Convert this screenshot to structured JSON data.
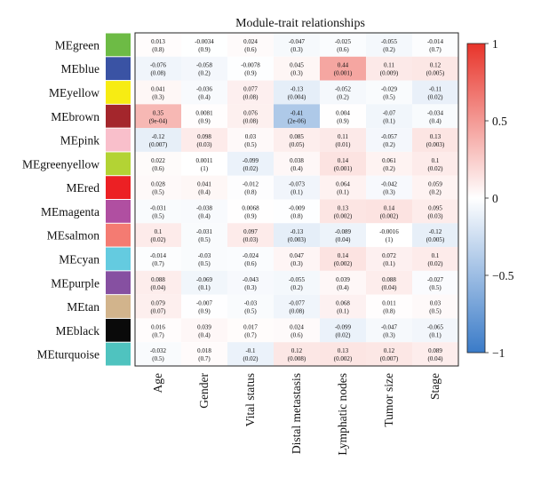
{
  "chart_data": {
    "type": "heatmap",
    "title": "Module-trait relationships",
    "rows": [
      {
        "label": "MEgreen",
        "color": "#6dbb45"
      },
      {
        "label": "MEblue",
        "color": "#3a53a4"
      },
      {
        "label": "MEyellow",
        "color": "#f7ec13"
      },
      {
        "label": "MEbrown",
        "color": "#a4262c"
      },
      {
        "label": "MEpink",
        "color": "#f9bfcb"
      },
      {
        "label": "MEgreenyellow",
        "color": "#b3d334"
      },
      {
        "label": "MEred",
        "color": "#ec2024"
      },
      {
        "label": "MEmagenta",
        "color": "#b04fa1"
      },
      {
        "label": "MEsalmon",
        "color": "#f47b72"
      },
      {
        "label": "MEcyan",
        "color": "#64cbe0"
      },
      {
        "label": "MEpurple",
        "color": "#8650a1"
      },
      {
        "label": "MEtan",
        "color": "#d2b48c"
      },
      {
        "label": "MEblack",
        "color": "#0a0a0a"
      },
      {
        "label": "MEturquoise",
        "color": "#4fc3bf"
      }
    ],
    "columns": [
      "Age",
      "Gender",
      "Vital status",
      "Distal metastasis",
      "Lymphatic nodes",
      "Tumor size",
      "Stage"
    ],
    "values": [
      [
        0.013,
        -0.0034,
        0.024,
        -0.047,
        -0.025,
        -0.055,
        -0.014
      ],
      [
        -0.076,
        -0.058,
        -0.0078,
        0.045,
        0.44,
        0.11,
        0.12
      ],
      [
        0.041,
        -0.036,
        0.077,
        -0.13,
        -0.052,
        -0.029,
        -0.11
      ],
      [
        0.35,
        0.0081,
        0.076,
        -0.41,
        0.004,
        -0.07,
        -0.034
      ],
      [
        -0.12,
        0.098,
        0.03,
        0.085,
        0.11,
        -0.057,
        0.13
      ],
      [
        0.022,
        0.0011,
        -0.099,
        0.038,
        0.14,
        0.061,
        0.1
      ],
      [
        0.028,
        0.041,
        -0.012,
        -0.073,
        0.064,
        -0.042,
        0.059
      ],
      [
        -0.031,
        -0.038,
        0.0068,
        -0.009,
        0.13,
        0.14,
        0.095
      ],
      [
        0.1,
        -0.031,
        0.097,
        -0.13,
        -0.089,
        -0.0016,
        -0.12
      ],
      [
        -0.014,
        -0.03,
        -0.024,
        0.047,
        0.14,
        0.072,
        0.1
      ],
      [
        0.088,
        -0.069,
        -0.043,
        -0.055,
        0.039,
        0.088,
        -0.027
      ],
      [
        0.079,
        -0.007,
        -0.03,
        -0.077,
        0.068,
        0.011,
        0.03
      ],
      [
        0.016,
        0.039,
        0.017,
        0.024,
        -0.099,
        -0.047,
        -0.065
      ],
      [
        -0.032,
        0.018,
        -0.1,
        0.12,
        0.13,
        0.12,
        0.089
      ]
    ],
    "value_labels": [
      [
        "0.013",
        "-0.0034",
        "0.024",
        "-0.047",
        "-0.025",
        "-0.055",
        "-0.014"
      ],
      [
        "-0.076",
        "-0.058",
        "-0.0078",
        "0.045",
        "0.44",
        "0.11",
        "0.12"
      ],
      [
        "0.041",
        "-0.036",
        "0.077",
        "-0.13",
        "-0.052",
        "-0.029",
        "-0.11"
      ],
      [
        "0.35",
        "0.0081",
        "0.076",
        "-0.41",
        "0.004",
        "-0.07",
        "-0.034"
      ],
      [
        "-0.12",
        "0.098",
        "0.03",
        "0.085",
        "0.11",
        "-0.057",
        "0.13"
      ],
      [
        "0.022",
        "0.0011",
        "-0.099",
        "0.038",
        "0.14",
        "0.061",
        "0.1"
      ],
      [
        "0.028",
        "0.041",
        "-0.012",
        "-0.073",
        "0.064",
        "-0.042",
        "0.059"
      ],
      [
        "-0.031",
        "-0.038",
        "0.0068",
        "-0.009",
        "0.13",
        "0.14",
        "0.095"
      ],
      [
        "0.1",
        "-0.031",
        "0.097",
        "-0.13",
        "-0.089",
        "-0.0016",
        "-0.12"
      ],
      [
        "-0.014",
        "-0.03",
        "-0.024",
        "0.047",
        "0.14",
        "0.072",
        "0.1"
      ],
      [
        "0.088",
        "-0.069",
        "-0.043",
        "-0.055",
        "0.039",
        "0.088",
        "-0.027"
      ],
      [
        "0.079",
        "-0.007",
        "-0.03",
        "-0.077",
        "0.068",
        "0.011",
        "0.03"
      ],
      [
        "0.016",
        "0.039",
        "0.017",
        "0.024",
        "-0.099",
        "-0.047",
        "-0.065"
      ],
      [
        "-0.032",
        "0.018",
        "-0.1",
        "0.12",
        "0.13",
        "0.12",
        "0.089"
      ]
    ],
    "pvalues": [
      [
        "(0.8)",
        "(0.9)",
        "(0.6)",
        "(0.3)",
        "(0.6)",
        "(0.2)",
        "(0.7)"
      ],
      [
        "(0.08)",
        "(0.2)",
        "(0.9)",
        "(0.3)",
        "(0.001)",
        "(0.009)",
        "(0.005)"
      ],
      [
        "(0.3)",
        "(0.4)",
        "(0.08)",
        "(0.004)",
        "(0.2)",
        "(0.5)",
        "(0.02)"
      ],
      [
        "(9e-04)",
        "(0.9)",
        "(0.08)",
        "(2e-06)",
        "(0.9)",
        "(0.1)",
        "(0.4)"
      ],
      [
        "(0.007)",
        "(0.03)",
        "(0.5)",
        "(0.05)",
        "(0.01)",
        "(0.2)",
        "(0.003)"
      ],
      [
        "(0.6)",
        "(1)",
        "(0.02)",
        "(0.4)",
        "(0.001)",
        "(0.2)",
        "(0.02)"
      ],
      [
        "(0.5)",
        "(0.4)",
        "(0.8)",
        "(0.1)",
        "(0.1)",
        "(0.3)",
        "(0.2)"
      ],
      [
        "(0.5)",
        "(0.4)",
        "(0.9)",
        "(0.8)",
        "(0.002)",
        "(0.002)",
        "(0.03)"
      ],
      [
        "(0.02)",
        "(0.5)",
        "(0.03)",
        "(0.003)",
        "(0.04)",
        "(1)",
        "(0.005)"
      ],
      [
        "(0.7)",
        "(0.5)",
        "(0.6)",
        "(0.3)",
        "(0.002)",
        "(0.1)",
        "(0.02)"
      ],
      [
        "(0.04)",
        "(0.1)",
        "(0.3)",
        "(0.2)",
        "(0.4)",
        "(0.04)",
        "(0.5)"
      ],
      [
        "(0.07)",
        "(0.9)",
        "(0.5)",
        "(0.08)",
        "(0.1)",
        "(0.8)",
        "(0.5)"
      ],
      [
        "(0.7)",
        "(0.4)",
        "(0.7)",
        "(0.6)",
        "(0.02)",
        "(0.3)",
        "(0.1)"
      ],
      [
        "(0.5)",
        "(0.7)",
        "(0.02)",
        "(0.008)",
        "(0.002)",
        "(0.007)",
        "(0.04)"
      ]
    ],
    "colorbar": {
      "range": [
        -1,
        1
      ],
      "ticks": [
        1,
        0.5,
        0,
        -0.5,
        -1
      ],
      "tick_labels": [
        "1",
        "0.5",
        "0",
        "−0.5",
        "−1"
      ],
      "colors": {
        "negative": "#3a7bc8",
        "zero": "#ffffff",
        "positive": "#e8342a"
      }
    }
  }
}
